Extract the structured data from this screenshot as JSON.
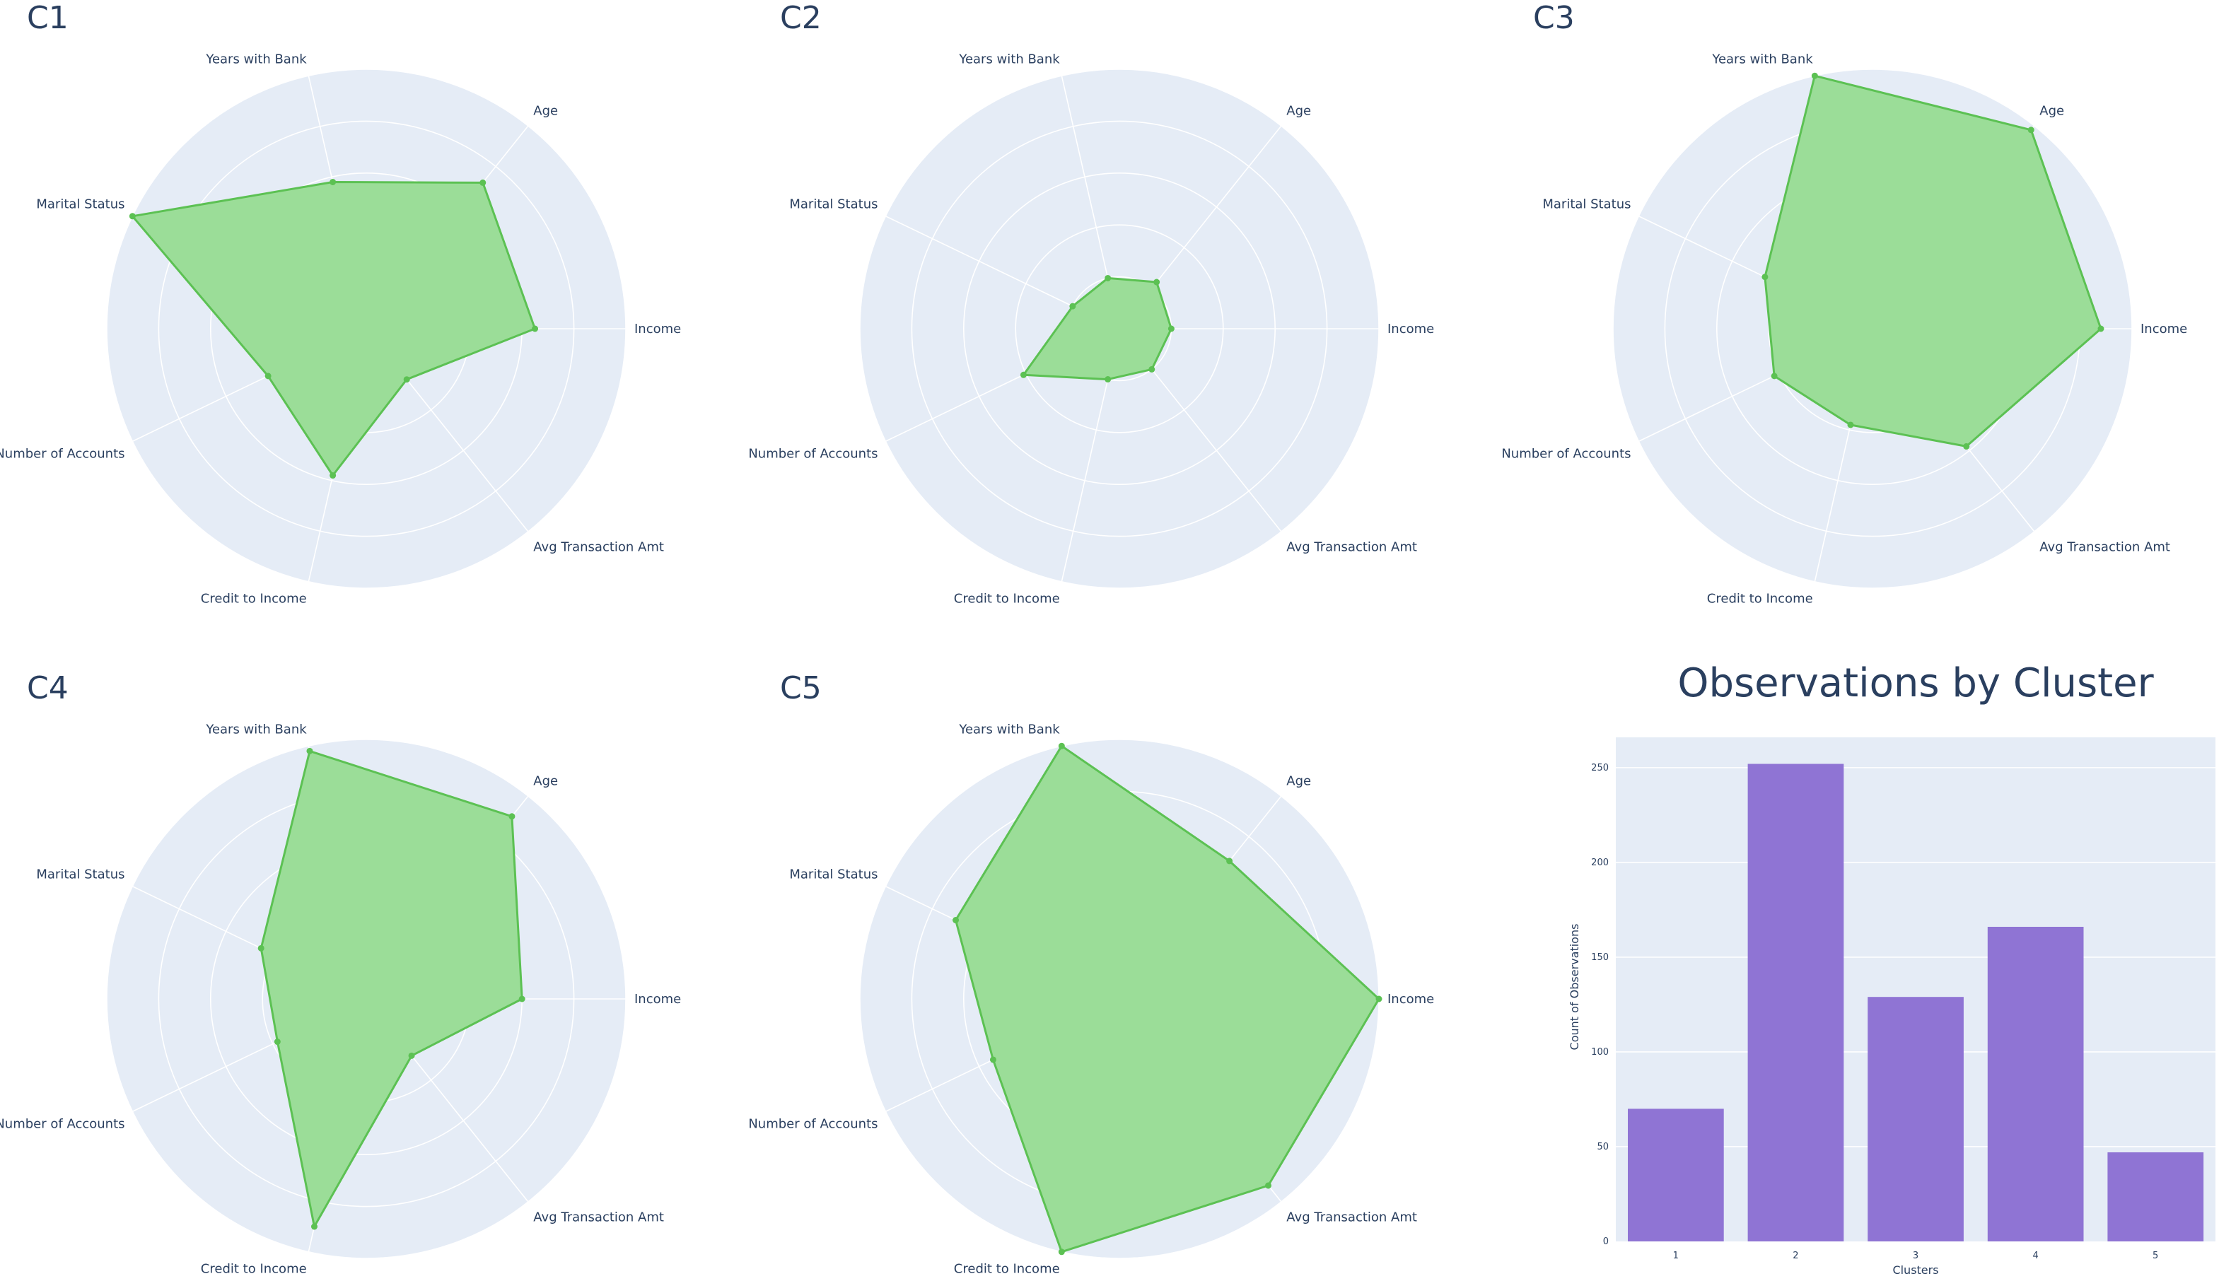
{
  "colors": {
    "polar_bg": "#e5ecf6",
    "grid": "#ffffff",
    "radar_fill": "#9bdd98",
    "radar_line": "#5cc153",
    "bar": "#8f74d4",
    "text": "#2a3f5f"
  },
  "chart_data": [
    {
      "type": "radar",
      "title": "C1",
      "axes": [
        "Income",
        "Age",
        "Years with Bank",
        "Marital Status",
        "Number of Accounts",
        "Credit to Income",
        "Avg Transaction Amt"
      ],
      "values": [
        0.65,
        0.72,
        0.58,
        1.0,
        0.42,
        0.58,
        0.25
      ],
      "rrange": [
        0,
        1
      ]
    },
    {
      "type": "radar",
      "title": "C2",
      "axes": [
        "Income",
        "Age",
        "Years with Bank",
        "Marital Status",
        "Number of Accounts",
        "Credit to Income",
        "Avg Transaction Amt"
      ],
      "values": [
        0.2,
        0.23,
        0.2,
        0.2,
        0.41,
        0.2,
        0.2
      ],
      "rrange": [
        0,
        1
      ]
    },
    {
      "type": "radar",
      "title": "C3",
      "axes": [
        "Income",
        "Age",
        "Years with Bank",
        "Marital Status",
        "Number of Accounts",
        "Credit to Income",
        "Avg Transaction Amt"
      ],
      "values": [
        0.88,
        0.98,
        1.0,
        0.46,
        0.42,
        0.38,
        0.58
      ],
      "rrange": [
        0,
        1
      ]
    },
    {
      "type": "radar",
      "title": "C4",
      "axes": [
        "Income",
        "Age",
        "Years with Bank",
        "Marital Status",
        "Number of Accounts",
        "Credit to Income",
        "Avg Transaction Amt"
      ],
      "values": [
        0.6,
        0.9,
        0.98,
        0.45,
        0.38,
        0.9,
        0.28
      ],
      "rrange": [
        0,
        1
      ]
    },
    {
      "type": "radar",
      "title": "C5",
      "axes": [
        "Income",
        "Age",
        "Years with Bank",
        "Marital Status",
        "Number of Accounts",
        "Credit to Income",
        "Avg Transaction Amt"
      ],
      "values": [
        1.0,
        0.68,
        1.0,
        0.7,
        0.54,
        1.0,
        0.92
      ],
      "rrange": [
        0,
        1
      ]
    },
    {
      "type": "bar",
      "title": "Observations by Cluster",
      "xlabel": "Clusters",
      "ylabel": "Count of Observations",
      "categories": [
        "1",
        "2",
        "3",
        "4",
        "5"
      ],
      "values": [
        70,
        252,
        129,
        166,
        47
      ],
      "ylim": [
        0,
        266
      ],
      "yticks": [
        0,
        50,
        100,
        150,
        200,
        250
      ]
    }
  ]
}
